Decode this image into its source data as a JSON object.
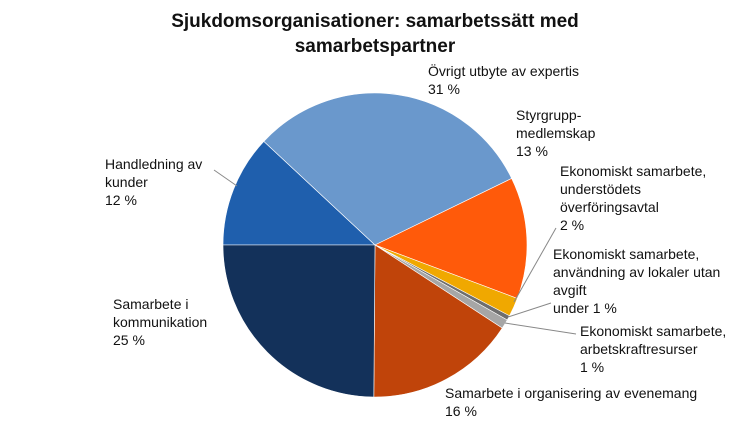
{
  "chart_data": {
    "type": "pie",
    "title": "Sjukdomsorganisationer: samarbetssätt med samarbetspartner",
    "categories": [
      "Handledning av kunder",
      "Övrigt utbyte av expertis",
      "Styrgrupp-medlemskap",
      "Ekonomiskt samarbete, understödets överföringsavtal",
      "Ekonomiskt samarbete, användning av lokaler utan avgift",
      "Ekonomiskt samarbete, arbetskraftresurser",
      "Samarbete i organisering av evenemang",
      "Samarbete i kommunikation"
    ],
    "values": [
      12,
      31,
      13,
      2,
      0.5,
      1,
      16,
      25
    ],
    "value_labels": [
      "12 %",
      "31 %",
      "13 %",
      "2 %",
      "under 1 %",
      "1 %",
      "16 %",
      "25 %"
    ],
    "colors": [
      "#1f5fad",
      "#6a98cc",
      "#ff5a0a",
      "#f0a800",
      "#6e6e6e",
      "#a6a6a6",
      "#c0440a",
      "#13315a"
    ]
  }
}
